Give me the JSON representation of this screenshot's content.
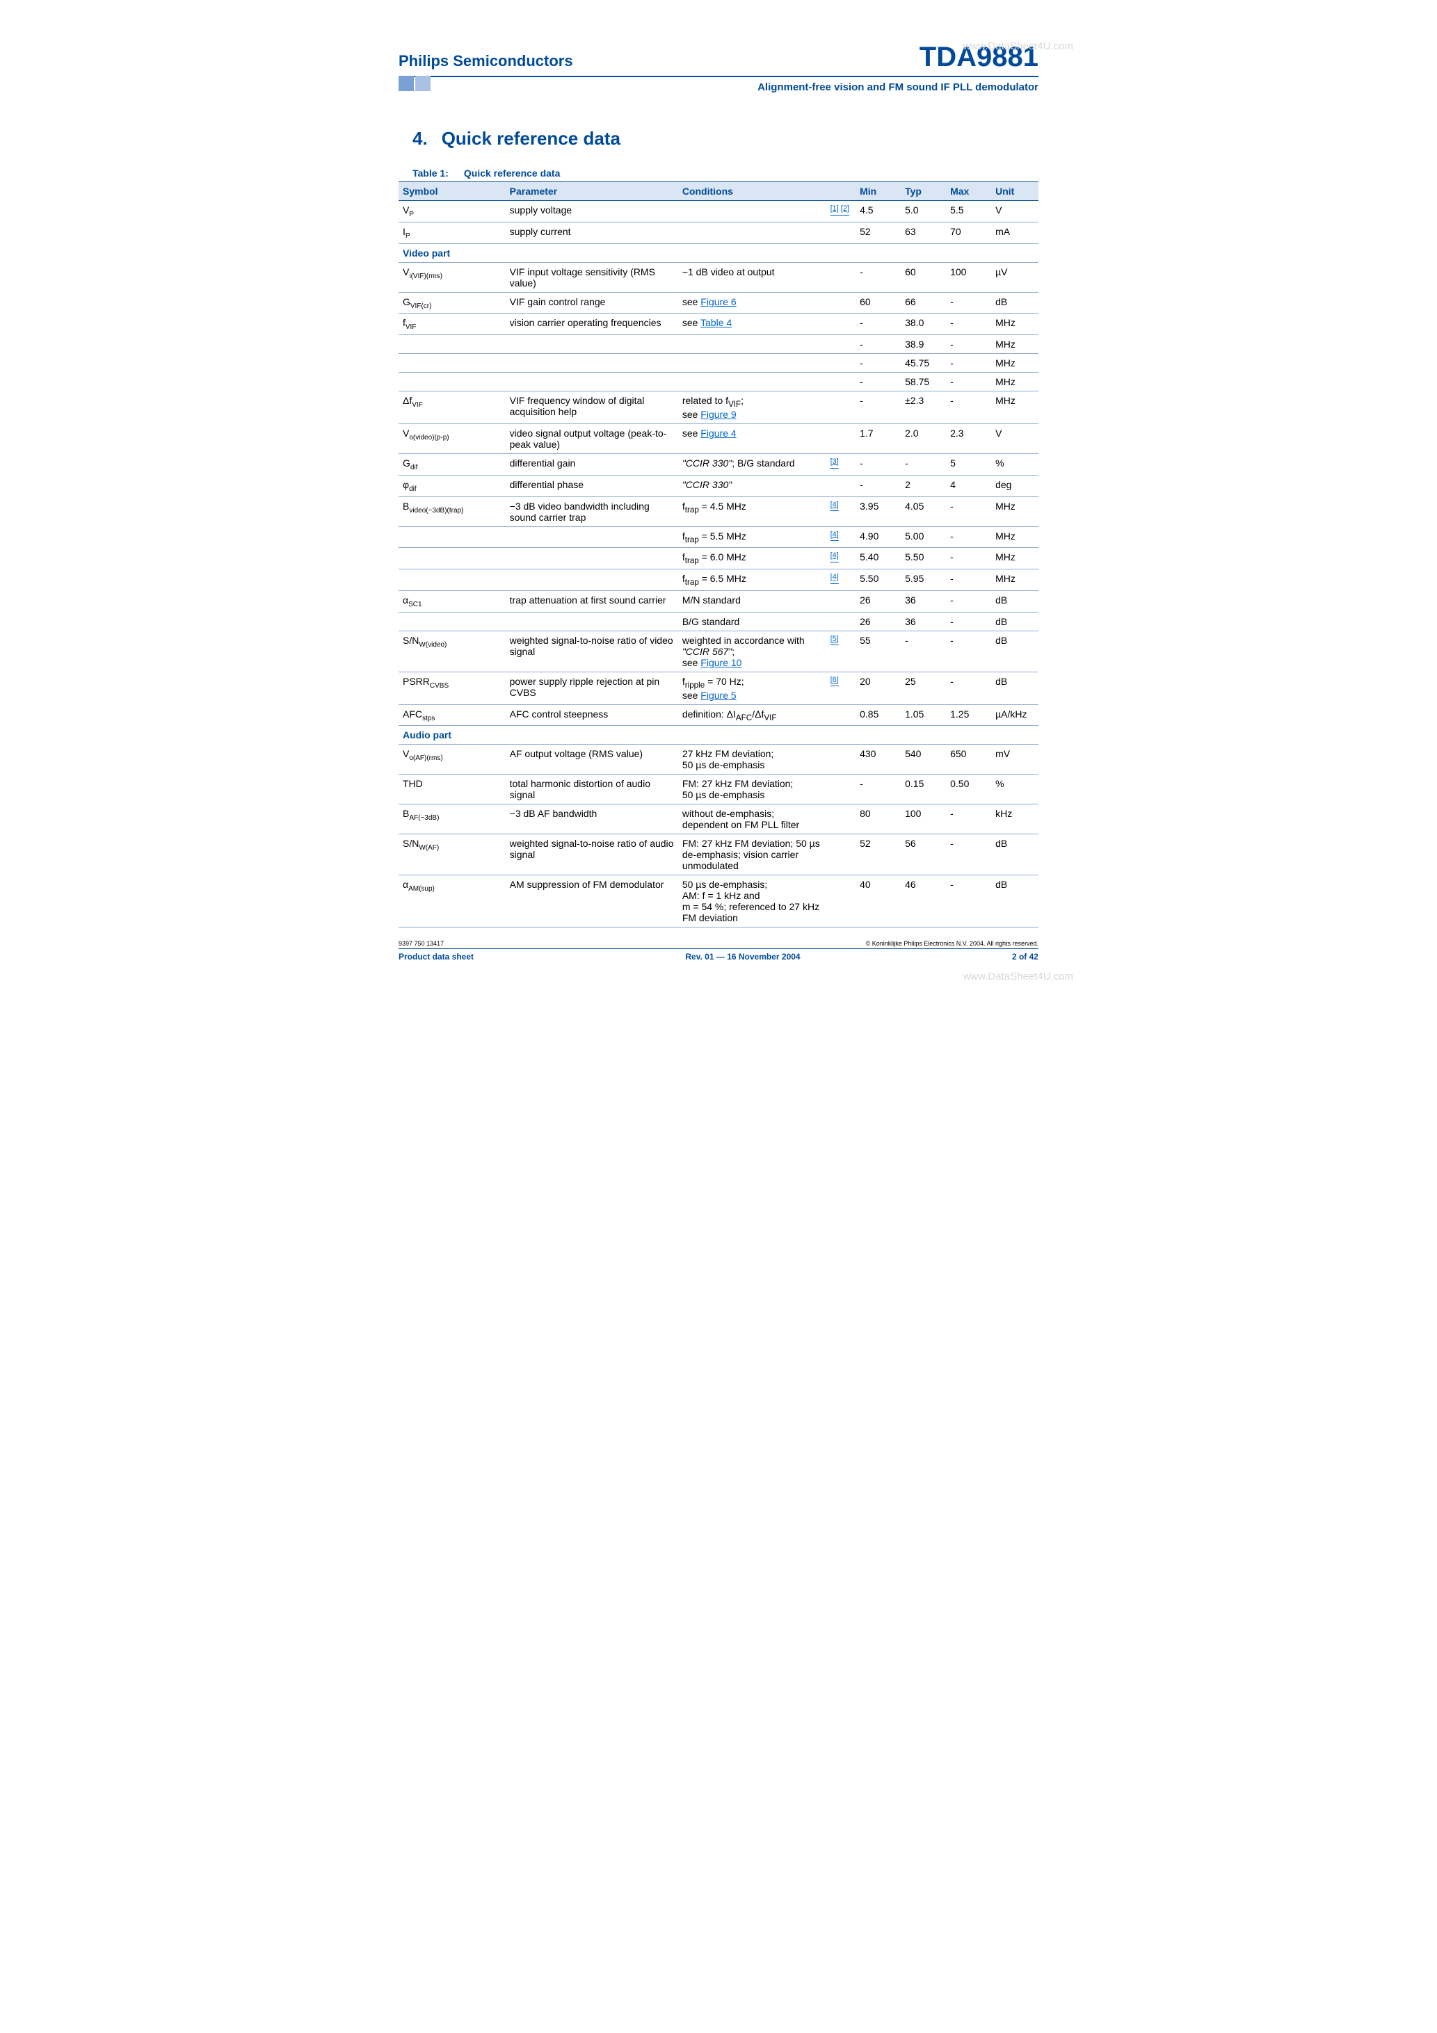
{
  "header": {
    "company": "Philips Semiconductors",
    "part": "TDA9881",
    "subtitle": "Alignment-free vision and FM sound IF PLL demodulator",
    "tab_colors": [
      "#7aa0d4",
      "#a8c1e4"
    ],
    "watermark": "www.DataSheet4U.com"
  },
  "section": {
    "num": "4.",
    "title": "Quick reference data"
  },
  "table_caption": {
    "label": "Table 1:",
    "title": "Quick reference data"
  },
  "columns": [
    "Symbol",
    "Parameter",
    "Conditions",
    "",
    "Min",
    "Typ",
    "Max",
    "Unit"
  ],
  "rows": [
    {
      "sym": "V<sub>P</sub>",
      "param": "supply voltage",
      "cond": "",
      "ref": "[1] [2]",
      "min": "4.5",
      "typ": "5.0",
      "max": "5.5",
      "unit": "V"
    },
    {
      "sym": "I<sub>P</sub>",
      "param": "supply current",
      "cond": "",
      "ref": "",
      "min": "52",
      "typ": "63",
      "max": "70",
      "unit": "mA"
    },
    {
      "section": "Video part"
    },
    {
      "sym": "V<sub>i(VIF)(rms)</sub>",
      "param": "VIF input voltage sensitivity (RMS value)",
      "cond": "−1 dB video at output",
      "ref": "",
      "min": "-",
      "typ": "60",
      "max": "100",
      "unit": "µV"
    },
    {
      "sym": "G<sub>VIF(cr)</sub>",
      "param": "VIF gain control range",
      "cond": "see <span class='link'>Figure 6</span>",
      "ref": "",
      "min": "60",
      "typ": "66",
      "max": "-",
      "unit": "dB"
    },
    {
      "sym": "f<sub>VIF</sub>",
      "param": "vision carrier operating frequencies",
      "cond": "see <span class='link'>Table 4</span>",
      "ref": "",
      "min": "-",
      "typ": "38.0",
      "max": "-",
      "unit": "MHz"
    },
    {
      "sym": "",
      "param": "",
      "cond": "",
      "ref": "",
      "min": "-",
      "typ": "38.9",
      "max": "-",
      "unit": "MHz"
    },
    {
      "sym": "",
      "param": "",
      "cond": "",
      "ref": "",
      "min": "-",
      "typ": "45.75",
      "max": "-",
      "unit": "MHz"
    },
    {
      "sym": "",
      "param": "",
      "cond": "",
      "ref": "",
      "min": "-",
      "typ": "58.75",
      "max": "-",
      "unit": "MHz"
    },
    {
      "sym": "Δf<sub>VIF</sub>",
      "param": "VIF frequency window of digital acquisition help",
      "cond": "related to f<sub>VIF</sub>;<br>see <span class='link'>Figure 9</span>",
      "ref": "",
      "min": "-",
      "typ": "±2.3",
      "max": "-",
      "unit": "MHz"
    },
    {
      "sym": "V<sub>o(video)(p-p)</sub>",
      "param": "video signal output voltage (peak-to-peak value)",
      "cond": "see <span class='link'>Figure 4</span>",
      "ref": "",
      "min": "1.7",
      "typ": "2.0",
      "max": "2.3",
      "unit": "V"
    },
    {
      "sym": "G<sub>dif</sub>",
      "param": "differential gain",
      "cond": "<i>\"CCIR 330\"</i>; B/G standard",
      "ref": "[3]",
      "min": "-",
      "typ": "-",
      "max": "5",
      "unit": "%"
    },
    {
      "sym": "φ<sub>dif</sub>",
      "param": "differential phase",
      "cond": "<i>\"CCIR 330\"</i>",
      "ref": "",
      "min": "-",
      "typ": "2",
      "max": "4",
      "unit": "deg"
    },
    {
      "sym": "B<sub>video(−3dB)(trap)</sub>",
      "param": "−3 dB video bandwidth including sound carrier trap",
      "cond": "f<sub>trap</sub> = 4.5 MHz",
      "ref": "[4]",
      "min": "3.95",
      "typ": "4.05",
      "max": "-",
      "unit": "MHz"
    },
    {
      "sym": "",
      "param": "",
      "cond": "f<sub>trap</sub> = 5.5 MHz",
      "ref": "[4]",
      "min": "4.90",
      "typ": "5.00",
      "max": "-",
      "unit": "MHz"
    },
    {
      "sym": "",
      "param": "",
      "cond": "f<sub>trap</sub> = 6.0 MHz",
      "ref": "[4]",
      "min": "5.40",
      "typ": "5.50",
      "max": "-",
      "unit": "MHz"
    },
    {
      "sym": "",
      "param": "",
      "cond": "f<sub>trap</sub> = 6.5 MHz",
      "ref": "[4]",
      "min": "5.50",
      "typ": "5.95",
      "max": "-",
      "unit": "MHz"
    },
    {
      "sym": "α<sub>SC1</sub>",
      "param": "trap attenuation at first sound carrier",
      "cond": "M/N standard",
      "ref": "",
      "min": "26",
      "typ": "36",
      "max": "-",
      "unit": "dB"
    },
    {
      "sym": "",
      "param": "",
      "cond": "B/G standard",
      "ref": "",
      "min": "26",
      "typ": "36",
      "max": "-",
      "unit": "dB"
    },
    {
      "sym": "S/N<sub>W(video)</sub>",
      "param": "weighted signal-to-noise ratio of video signal",
      "cond": "weighted in accordance with <i>\"CCIR 567\"</i>;<br>see <span class='link'>Figure 10</span>",
      "ref": "[5]",
      "min": "55",
      "typ": "-",
      "max": "-",
      "unit": "dB"
    },
    {
      "sym": "PSRR<sub>CVBS</sub>",
      "param": "power supply ripple rejection at pin CVBS",
      "cond": "f<sub>ripple</sub> = 70 Hz;<br>see <span class='link'>Figure 5</span>",
      "ref": "[6]",
      "min": "20",
      "typ": "25",
      "max": "-",
      "unit": "dB"
    },
    {
      "sym": "AFC<sub>stps</sub>",
      "param": "AFC control steepness",
      "cond": "definition: ΔI<sub>AFC</sub>/Δf<sub>VIF</sub>",
      "ref": "",
      "min": "0.85",
      "typ": "1.05",
      "max": "1.25",
      "unit": "µA/kHz"
    },
    {
      "section": "Audio part"
    },
    {
      "sym": "V<sub>o(AF)(rms)</sub>",
      "param": "AF output voltage (RMS value)",
      "cond": "27 kHz FM deviation;<br>50 µs de-emphasis",
      "ref": "",
      "min": "430",
      "typ": "540",
      "max": "650",
      "unit": "mV"
    },
    {
      "sym": "THD",
      "param": "total harmonic distortion of audio signal",
      "cond": "FM: 27 kHz FM deviation;<br>50 µs de-emphasis",
      "ref": "",
      "min": "-",
      "typ": "0.15",
      "max": "0.50",
      "unit": "%"
    },
    {
      "sym": "B<sub>AF(−3dB)</sub>",
      "param": "−3 dB AF bandwidth",
      "cond": "without de-emphasis; dependent on FM PLL filter",
      "ref": "",
      "min": "80",
      "typ": "100",
      "max": "-",
      "unit": "kHz"
    },
    {
      "sym": "S/N<sub>W(AF)</sub>",
      "param": "weighted signal-to-noise ratio of audio signal",
      "cond": "FM: 27 kHz FM deviation; 50 µs de-emphasis; vision carrier unmodulated",
      "ref": "",
      "min": "52",
      "typ": "56",
      "max": "-",
      "unit": "dB"
    },
    {
      "sym": "α<sub>AM(sup)</sub>",
      "param": "AM suppression of FM demodulator",
      "cond": "50 µs de-emphasis;<br>AM: f = 1 kHz and<br>m = 54 %; referenced to 27 kHz FM deviation",
      "ref": "",
      "min": "40",
      "typ": "46",
      "max": "-",
      "unit": "dB"
    }
  ],
  "footer": {
    "left_top": "9397 750 13417",
    "right_top": "© Koninklijke Philips Electronics N.V. 2004. All rights reserved.",
    "left": "Product data sheet",
    "center": "Rev. 01 — 16 November 2004",
    "right": "2 of 42"
  }
}
